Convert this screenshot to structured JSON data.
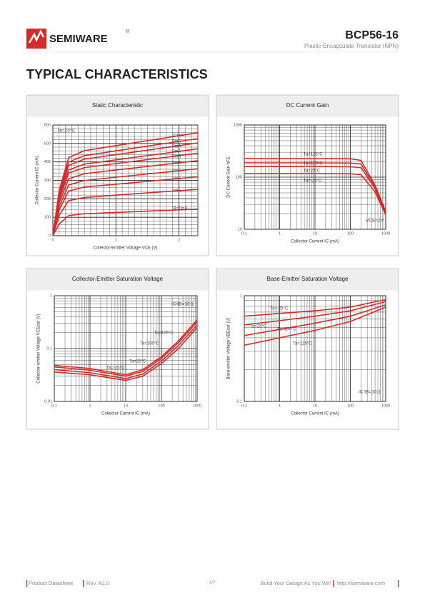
{
  "header": {
    "brand": "SEMIWARE",
    "registered": "®",
    "part": "BCP56-16",
    "subtitle": "Plastic-Encapsulate Transistor (NPN)"
  },
  "heading": "TYPICAL CHARACTERISTICS",
  "chart_data": [
    {
      "type": "line",
      "title": "Static Characteristic",
      "x_label": "Collector-Emitter Voltage VCE (V)",
      "y_label": "Collector Current IC (mA)",
      "annotation": "Ta=25°C",
      "x": [
        0,
        0.1,
        0.25,
        0.5,
        1,
        2,
        2.3
      ],
      "xlim": [
        0,
        2.3
      ],
      "xticks": [
        0,
        1,
        2
      ],
      "ylim": [
        0,
        600
      ],
      "yticks": [
        0,
        100,
        200,
        300,
        400,
        500,
        600
      ],
      "log_x": false,
      "log_y": false,
      "grid": true,
      "series": [
        {
          "name": "IB=1mA",
          "color": "#d42a2a",
          "values": [
            0,
            63,
            109,
            119,
            126,
            140,
            144
          ]
        },
        {
          "name": "2mA",
          "color": "#d42a2a",
          "values": [
            0,
            110,
            190,
            207,
            220,
            244,
            251
          ]
        },
        {
          "name": "3mA",
          "color": "#d42a2a",
          "values": [
            0,
            140,
            242,
            264,
            279,
            310,
            319
          ]
        },
        {
          "name": "4mA",
          "color": "#d42a2a",
          "values": [
            0,
            158,
            275,
            299,
            317,
            352,
            363
          ]
        },
        {
          "name": "5mA",
          "color": "#d42a2a",
          "values": [
            0,
            178,
            308,
            336,
            356,
            395,
            407
          ]
        },
        {
          "name": "6mA",
          "color": "#d42a2a",
          "values": [
            0,
            195,
            339,
            369,
            391,
            434,
            447
          ]
        },
        {
          "name": "7mA",
          "color": "#d42a2a",
          "values": [
            0,
            206,
            356,
            388,
            411,
            457,
            471
          ]
        },
        {
          "name": "8mA",
          "color": "#d42a2a",
          "values": [
            0,
            220,
            381,
            415,
            439,
            488,
            503
          ]
        },
        {
          "name": "9mA",
          "color": "#d42a2a",
          "values": [
            0,
            230,
            399,
            434,
            460,
            511,
            526
          ]
        },
        {
          "name": "10mA",
          "color": "#d42a2a",
          "values": [
            0,
            244,
            423,
            461,
            488,
            542,
            558
          ]
        }
      ]
    },
    {
      "type": "line",
      "title": "DC Current Gain",
      "x_label": "Collector Current IC (mA)",
      "y_label": "DC Current Gain hFE",
      "annotation": "VCE=2V",
      "x": [
        0.1,
        1,
        10,
        100,
        200,
        500,
        1000
      ],
      "xlim": [
        0.1,
        1000
      ],
      "xticks": [
        0.1,
        1,
        10,
        100,
        1000
      ],
      "ylim": [
        10,
        1000
      ],
      "yticks": [
        10,
        100,
        1000
      ],
      "log_x": true,
      "log_y": true,
      "grid": true,
      "series": [
        {
          "name": "Ta=125°C",
          "color": "#d42a2a",
          "values": [
            227,
            227,
            227,
            225,
            210,
            70,
            22
          ]
        },
        {
          "name": "Ta=100°C",
          "color": "#d42a2a",
          "values": [
            188,
            188,
            188,
            186,
            178,
            65,
            21
          ]
        },
        {
          "name": "Ta=25°C",
          "color": "#d42a2a",
          "values": [
            160,
            160,
            160,
            158,
            152,
            60,
            20
          ]
        },
        {
          "name": "Ta=-25°C",
          "color": "#d42a2a",
          "values": [
            117,
            117,
            117,
            116,
            112,
            52,
            19
          ]
        }
      ]
    },
    {
      "type": "line",
      "title": "Collector-Emitter Saturation Voltage",
      "x_label": "Collector Current IC (mA)",
      "y_label": "Collector-emitter Voltage VCEsat (V)",
      "annotation": "IC/IB=10:1",
      "x": [
        0.1,
        1,
        10,
        30,
        100,
        300,
        1000
      ],
      "xlim": [
        0.1,
        1000
      ],
      "xticks": [
        0.1,
        1,
        10,
        100,
        1000
      ],
      "ylim": [
        0.01,
        1
      ],
      "yticks": [
        0.01,
        0.1,
        1
      ],
      "log_x": true,
      "log_y": true,
      "grid": true,
      "series": [
        {
          "name": "Ta=125°C",
          "color": "#d42a2a",
          "values": [
            0.048,
            0.042,
            0.032,
            0.04,
            0.07,
            0.14,
            0.35
          ]
        },
        {
          "name": "Ta=100°C",
          "color": "#d42a2a",
          "values": [
            0.045,
            0.039,
            0.03,
            0.037,
            0.065,
            0.13,
            0.32
          ]
        },
        {
          "name": "Ta=25°C",
          "color": "#d42a2a",
          "values": [
            0.04,
            0.035,
            0.027,
            0.033,
            0.058,
            0.115,
            0.28
          ]
        },
        {
          "name": "Ta=-25°C",
          "color": "#d42a2a",
          "values": [
            0.036,
            0.032,
            0.025,
            0.03,
            0.052,
            0.1,
            0.25
          ]
        }
      ]
    },
    {
      "type": "line",
      "title": "Base-Emitter Saturation Voltage",
      "x_label": "Collector Current IC (mA)",
      "y_label": "Base-emitter Voltage VBEsat (V)",
      "annotation": "IC:IB=10:1",
      "x": [
        0.1,
        1,
        10,
        100,
        1000
      ],
      "xlim": [
        0.1,
        1000
      ],
      "xticks": [
        0.1,
        1,
        10,
        100,
        1000
      ],
      "ylim": [
        0.1,
        1
      ],
      "yticks": [
        0.1,
        1
      ],
      "log_x": true,
      "log_y": true,
      "grid": true,
      "series": [
        {
          "name": "Ta=-25°C",
          "color": "#d42a2a",
          "values": [
            0.64,
            0.68,
            0.72,
            0.78,
            0.92
          ]
        },
        {
          "name": "Ta=25°C",
          "color": "#d42a2a",
          "values": [
            0.53,
            0.58,
            0.64,
            0.72,
            0.88
          ]
        },
        {
          "name": "Ta=100°C",
          "color": "#d42a2a",
          "values": [
            0.42,
            0.48,
            0.55,
            0.64,
            0.82
          ]
        },
        {
          "name": "Ta=125°C",
          "color": "#d42a2a",
          "values": [
            0.34,
            0.4,
            0.47,
            0.57,
            0.78
          ]
        }
      ]
    }
  ],
  "footer": {
    "doc": "Product Datasheet",
    "rev": "Rev. A2.0",
    "page": "3/7",
    "slogan": "Build Your Design As You Will",
    "url": "http://semiware.com"
  }
}
